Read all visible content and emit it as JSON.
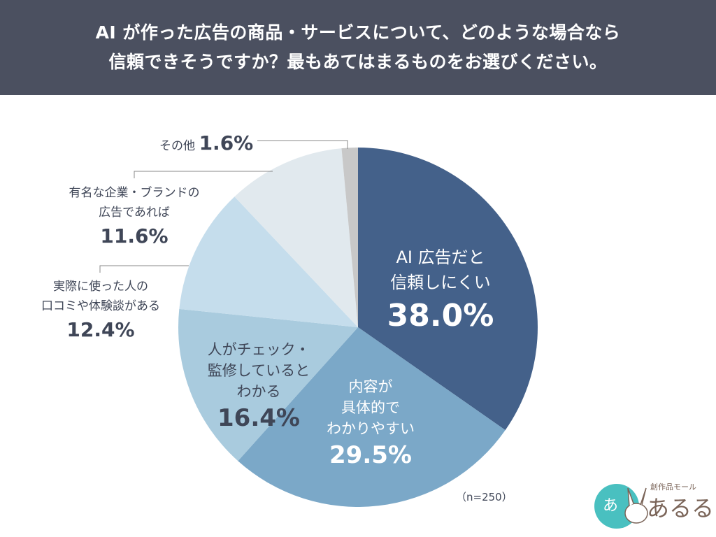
{
  "header": {
    "line1": "AI が作った広告の商品・サービスについて、どのような場合なら",
    "line2": "信頼できそうですか？最もあてはまるものをお選びください。"
  },
  "chart_data": {
    "type": "pie",
    "title": "AI が作った広告の商品・サービスについて、どのような場合なら信頼できそうですか？最もあてはまるものをお選びください。",
    "start": "top",
    "direction": "clockwise",
    "slices": [
      {
        "label": "AI 広告だと信頼しにくい",
        "value": 38.0,
        "display": "38.0%",
        "color": "#44618a"
      },
      {
        "label": "内容が具体的でわかりやすい",
        "value": 29.5,
        "display": "29.5%",
        "color": "#7ba8c8"
      },
      {
        "label": "人がチェック・監修しているとわかる",
        "value": 16.4,
        "display": "16.4%",
        "color": "#a9cbde"
      },
      {
        "label": "実際に使った人の口コミや体験談がある",
        "value": 12.4,
        "display": "12.4%",
        "color": "#c5ddec"
      },
      {
        "label": "有名な企業・ブランドの広告であれば",
        "value": 11.6,
        "display": "11.6%",
        "color": "#e1e9ee"
      },
      {
        "label": "その他",
        "value": 1.6,
        "display": "1.6%",
        "color": "#c8c8c8"
      }
    ],
    "note": "（n=250）"
  },
  "labels": {
    "s0": {
      "l1": "AI 広告だと",
      "l2": "信頼しにくい"
    },
    "s1": {
      "l1": "内容が",
      "l2": "具体的で",
      "l3": "わかりやすい"
    },
    "s2": {
      "l1": "人がチェック・",
      "l2": "監修している",
      "l3": "わかる"
    },
    "s3": {
      "l1": "実際に使った人の",
      "l2": "口コミや体験談がある"
    },
    "s4": {
      "l1": "有名な企業・ブランドの",
      "l2": "広告であれば"
    },
    "s5": {
      "l1": "その他"
    }
  },
  "logo": {
    "sub": "創作品モール",
    "main": "あるる"
  }
}
